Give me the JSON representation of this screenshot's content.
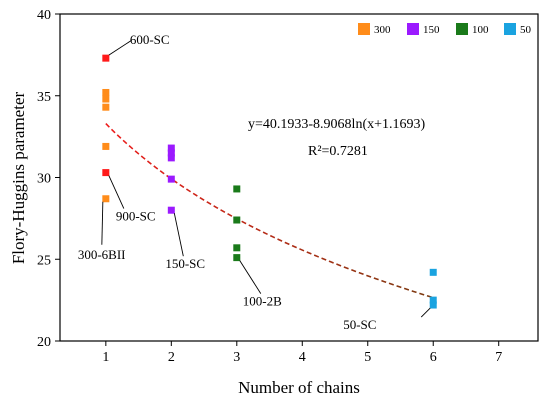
{
  "chart_data": {
    "type": "scatter",
    "xlabel": "Number of chains",
    "ylabel": "Flory-Huggins parameter",
    "xlim": [
      0.3,
      7.6
    ],
    "ylim": [
      20,
      40
    ],
    "xticks": [
      1,
      2,
      3,
      4,
      5,
      6,
      7
    ],
    "yticks": [
      20,
      25,
      30,
      35,
      40
    ],
    "legend": {
      "position": "top-right",
      "entries": [
        {
          "label": "300",
          "color": "#ff8c1a"
        },
        {
          "label": "150",
          "color": "#9b1aff"
        },
        {
          "label": "100",
          "color": "#1a7a1a"
        },
        {
          "label": "50",
          "color": "#1aa3e0"
        }
      ]
    },
    "series": [
      {
        "name": "300",
        "color": "#ff8c1a",
        "points": [
          {
            "x": 1,
            "y": 35.2
          },
          {
            "x": 1,
            "y": 34.8
          },
          {
            "x": 1,
            "y": 34.3
          },
          {
            "x": 1,
            "y": 31.9
          },
          {
            "x": 1,
            "y": 28.7
          }
        ]
      },
      {
        "name": "150",
        "color": "#9b1aff",
        "points": [
          {
            "x": 2,
            "y": 31.8
          },
          {
            "x": 2,
            "y": 31.5
          },
          {
            "x": 2,
            "y": 31.2
          },
          {
            "x": 2,
            "y": 29.9
          },
          {
            "x": 2,
            "y": 28.0
          }
        ]
      },
      {
        "name": "100",
        "color": "#1a7a1a",
        "points": [
          {
            "x": 3,
            "y": 29.3
          },
          {
            "x": 3,
            "y": 27.4
          },
          {
            "x": 3,
            "y": 25.7
          },
          {
            "x": 3,
            "y": 25.1
          }
        ]
      },
      {
        "name": "50",
        "color": "#1aa3e0",
        "points": [
          {
            "x": 6,
            "y": 24.2
          },
          {
            "x": 6,
            "y": 22.5
          },
          {
            "x": 6,
            "y": 22.2
          }
        ]
      },
      {
        "name": "SC",
        "color": "#ff1a1a",
        "points": [
          {
            "x": 1,
            "y": 37.3
          },
          {
            "x": 1,
            "y": 30.3
          }
        ]
      }
    ],
    "fit": {
      "formula": "y=40.1933-8.9068ln(x+1.1693)",
      "r2_label": "R²=0.7281",
      "a": 40.1933,
      "b": 8.9068,
      "c": 1.1693,
      "x_range": [
        1,
        6
      ],
      "color_start": "#ee1c1c",
      "color_end": "#7a3a10"
    },
    "annotations": [
      {
        "text": "600-SC",
        "x": 1,
        "y": 37.3
      },
      {
        "text": "900-SC",
        "x": 1,
        "y": 30.3
      },
      {
        "text": "300-6BII",
        "x": 1,
        "y": 28.7
      },
      {
        "text": "150-SC",
        "x": 2,
        "y": 28.0
      },
      {
        "text": "100-2B",
        "x": 3,
        "y": 25.1
      },
      {
        "text": "50-SC",
        "x": 6,
        "y": 22.2
      }
    ]
  }
}
